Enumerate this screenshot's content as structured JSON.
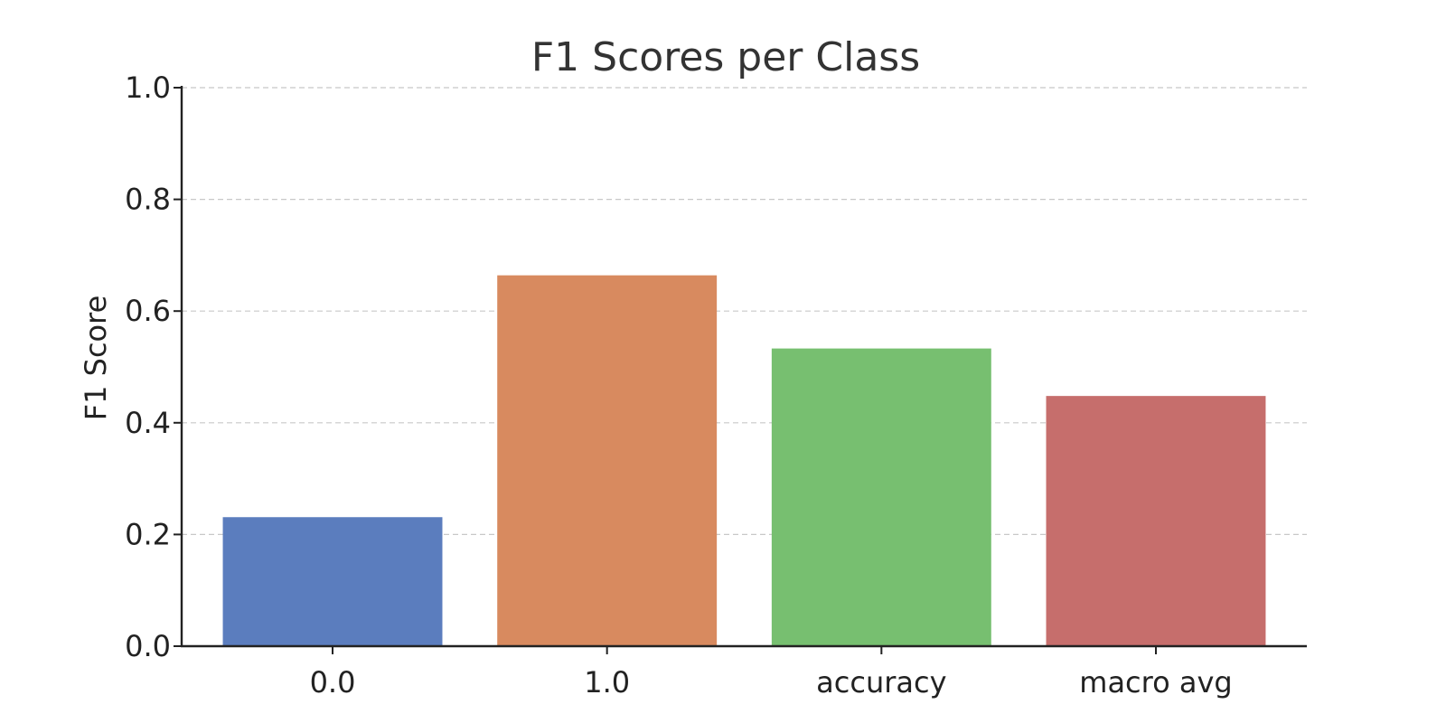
{
  "chart_data": {
    "type": "bar",
    "title": "F1 Scores per Class",
    "xlabel": "",
    "ylabel": "F1 Score",
    "categories": [
      "0.0",
      "1.0",
      "accuracy",
      "macro avg"
    ],
    "values": [
      0.231,
      0.664,
      0.533,
      0.448
    ],
    "colors": [
      "#5b7dbe",
      "#d88a5f",
      "#77bf70",
      "#c66e6c"
    ],
    "ylim": [
      0,
      1.0
    ],
    "yticks": [
      "0.0",
      "0.2",
      "0.4",
      "0.6",
      "0.8",
      "1.0"
    ],
    "grid": true
  }
}
